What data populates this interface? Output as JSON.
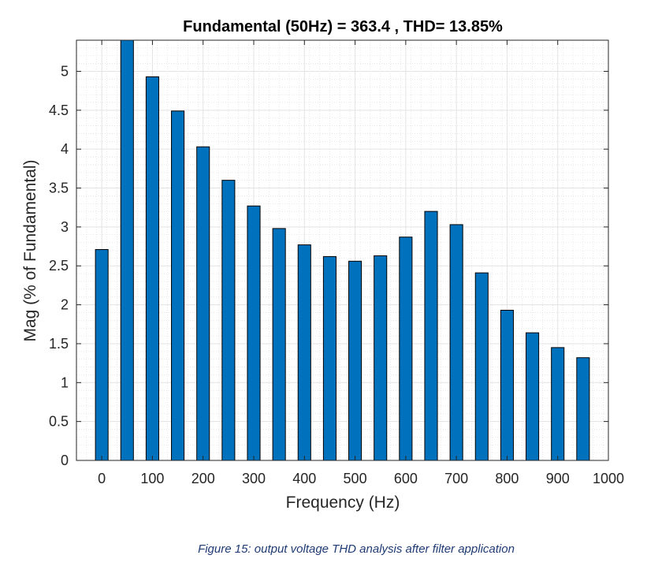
{
  "caption": "Figure 15: output voltage THD analysis after filter application",
  "chart_data": {
    "type": "bar",
    "title": "Fundamental (50Hz) = 363.4 , THD= 13.85%",
    "xlabel": "Frequency (Hz)",
    "ylabel": "Mag (% of Fundamental)",
    "x": [
      0,
      50,
      100,
      150,
      200,
      250,
      300,
      350,
      400,
      450,
      500,
      550,
      600,
      650,
      700,
      750,
      800,
      850,
      900,
      950
    ],
    "values": [
      2.71,
      5.45,
      4.93,
      4.49,
      4.03,
      3.6,
      3.27,
      2.98,
      2.77,
      2.62,
      2.56,
      2.63,
      2.87,
      3.2,
      3.03,
      2.41,
      1.93,
      1.64,
      1.45,
      1.32
    ],
    "xlim": [
      -50,
      1000
    ],
    "ylim": [
      0,
      5.4
    ],
    "xticks": [
      0,
      100,
      200,
      300,
      400,
      500,
      600,
      700,
      800,
      900,
      1000
    ],
    "yticks": [
      0,
      0.5,
      1,
      1.5,
      2,
      2.5,
      3,
      3.5,
      4,
      4.5,
      5
    ],
    "grid": true,
    "minor_grid": true,
    "bar_color": "#0072BD",
    "bar_edge_color": "#000000"
  }
}
